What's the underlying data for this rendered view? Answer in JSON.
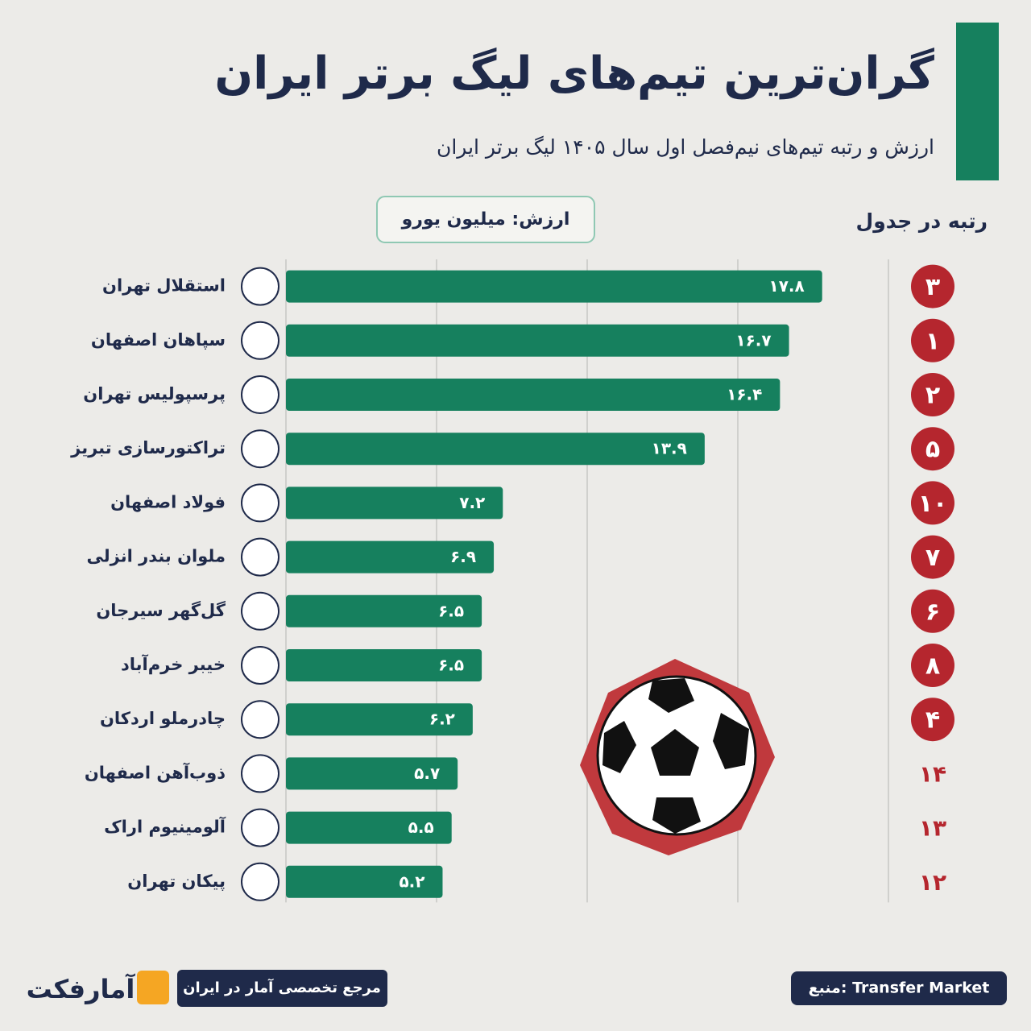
{
  "chart_data": {
    "type": "bar",
    "title": "گران‌ترین تیم‌های لیگ برتر ایران",
    "subtitle": "ارزش و رتبه تیم‌های نیم‌فصل اول سال ۱۴۰۵ لیگ برتر ایران",
    "unit_label": "ارزش: میلیون یورو",
    "rank_header": "رتبه در جدول",
    "categories": [
      "استقلال تهران",
      "سپاهان اصفهان",
      "پرسپولیس تهران",
      "تراکتورسازی تبریز",
      "فولاد اصفهان",
      "ملوان بندر انزلی",
      "گل‌گهر سیرجان",
      "خیبر خرم‌آباد",
      "چادرملو اردکان",
      "ذوب‌آهن اصفهان",
      "آلومینیوم اراک",
      "پیکان تهران"
    ],
    "values": [
      17.8,
      16.7,
      16.4,
      13.9,
      7.2,
      6.9,
      6.5,
      6.5,
      6.2,
      5.7,
      5.5,
      5.2
    ],
    "value_labels": [
      "۱۷.۸",
      "۱۶.۷",
      "۱۶.۴",
      "۱۳.۹",
      "۷.۲",
      "۶.۹",
      "۶.۵",
      "۶.۵",
      "۶.۲",
      "۵.۷",
      "۵.۵",
      "۵.۲"
    ],
    "ranks": [
      3,
      1,
      2,
      5,
      10,
      7,
      6,
      8,
      4,
      14,
      13,
      12
    ],
    "rank_labels": [
      "۳",
      "۱",
      "۲",
      "۵",
      "۱۰",
      "۷",
      "۶",
      "۸",
      "۴",
      "۱۴",
      "۱۳",
      "۱۲"
    ],
    "color": "#16805e",
    "xlim": [
      0,
      20
    ],
    "xticks": [
      0,
      5,
      10,
      15,
      20
    ],
    "grid": true,
    "brand": "آمارفکت",
    "tagline": "مرجع تخصصی آمار در ایران",
    "source": "منبع: Transfer Market"
  }
}
